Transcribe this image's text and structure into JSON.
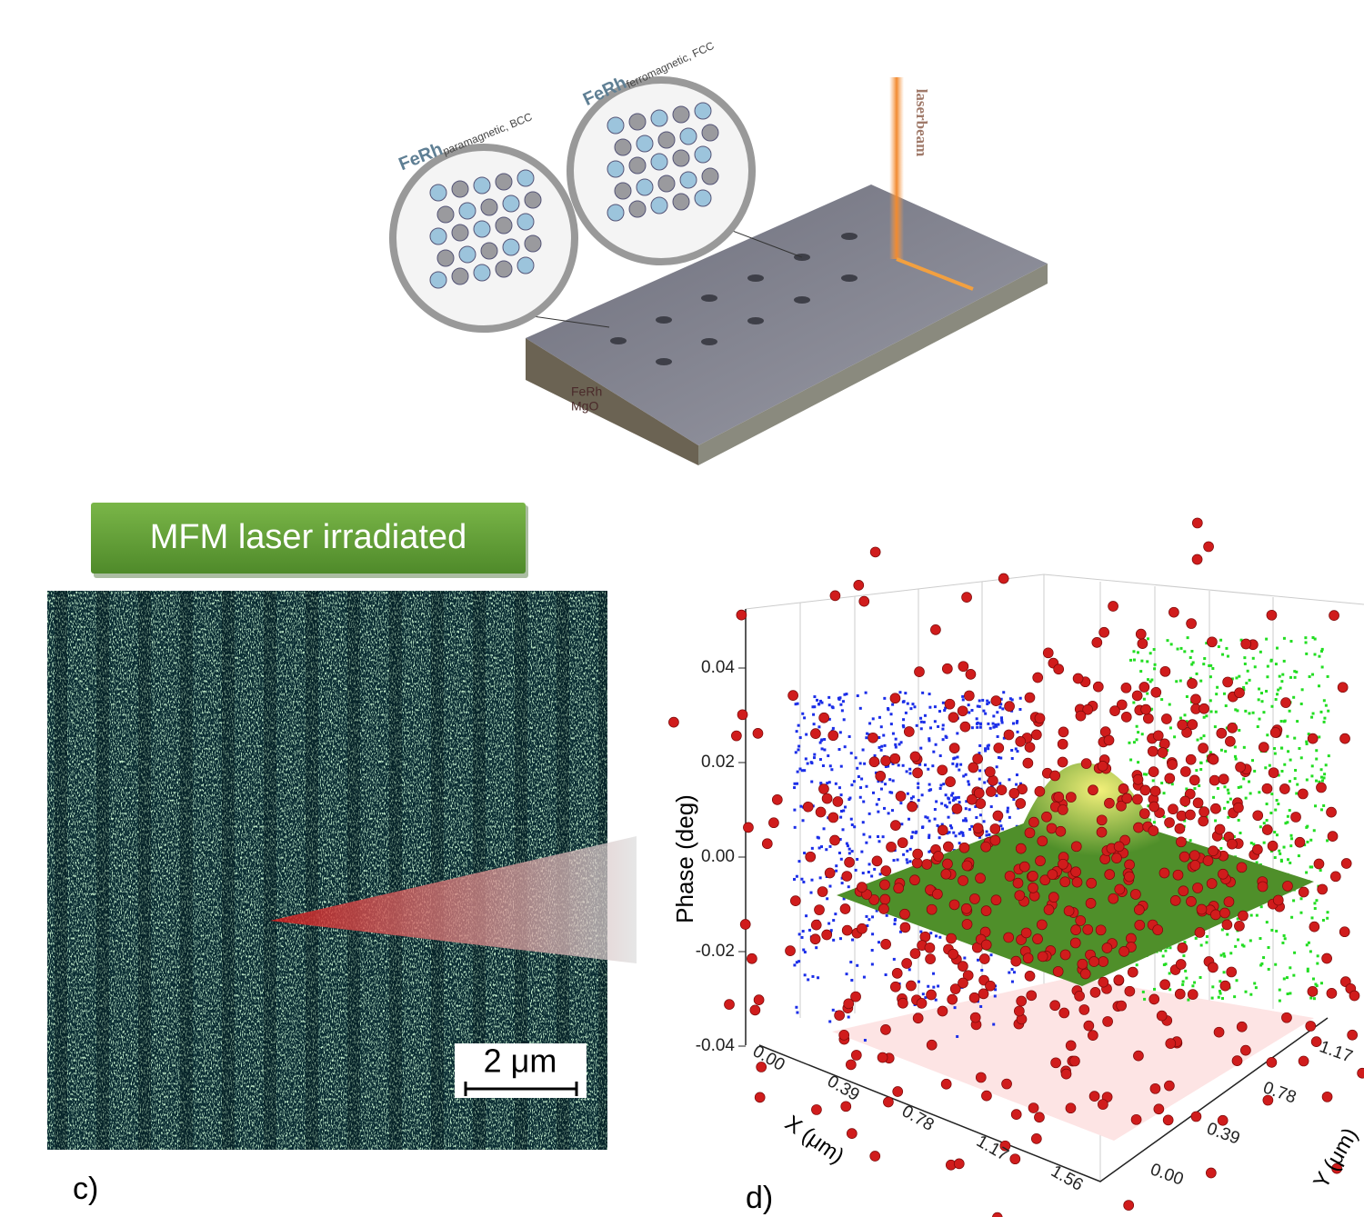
{
  "illustration": {
    "crystal_left": {
      "main": "FeRh",
      "sub": "paramagnetic, BCC"
    },
    "crystal_right": {
      "main": "FeRh",
      "sub": "ferromagnetic, FCC"
    },
    "beam_label": "laserbeam",
    "layers": [
      "FeRh",
      "MgO"
    ]
  },
  "mfm": {
    "banner": "MFM laser irradiated",
    "scale_bar": "2 μm",
    "panel_label": "c)"
  },
  "plot3d": {
    "panel_label": "d)",
    "z_label": "Phase (deg)",
    "z_ticks": [
      "0.04",
      "0.02",
      "0.00",
      "-0.02",
      "-0.04"
    ],
    "x_label": "X (μm)",
    "x_ticks": [
      "0.00",
      "0.39",
      "0.78",
      "1.17",
      "1.56"
    ],
    "y_label": "Y (μm)",
    "y_ticks": [
      "0.00",
      "0.39",
      "0.78",
      "1.17"
    ]
  }
}
